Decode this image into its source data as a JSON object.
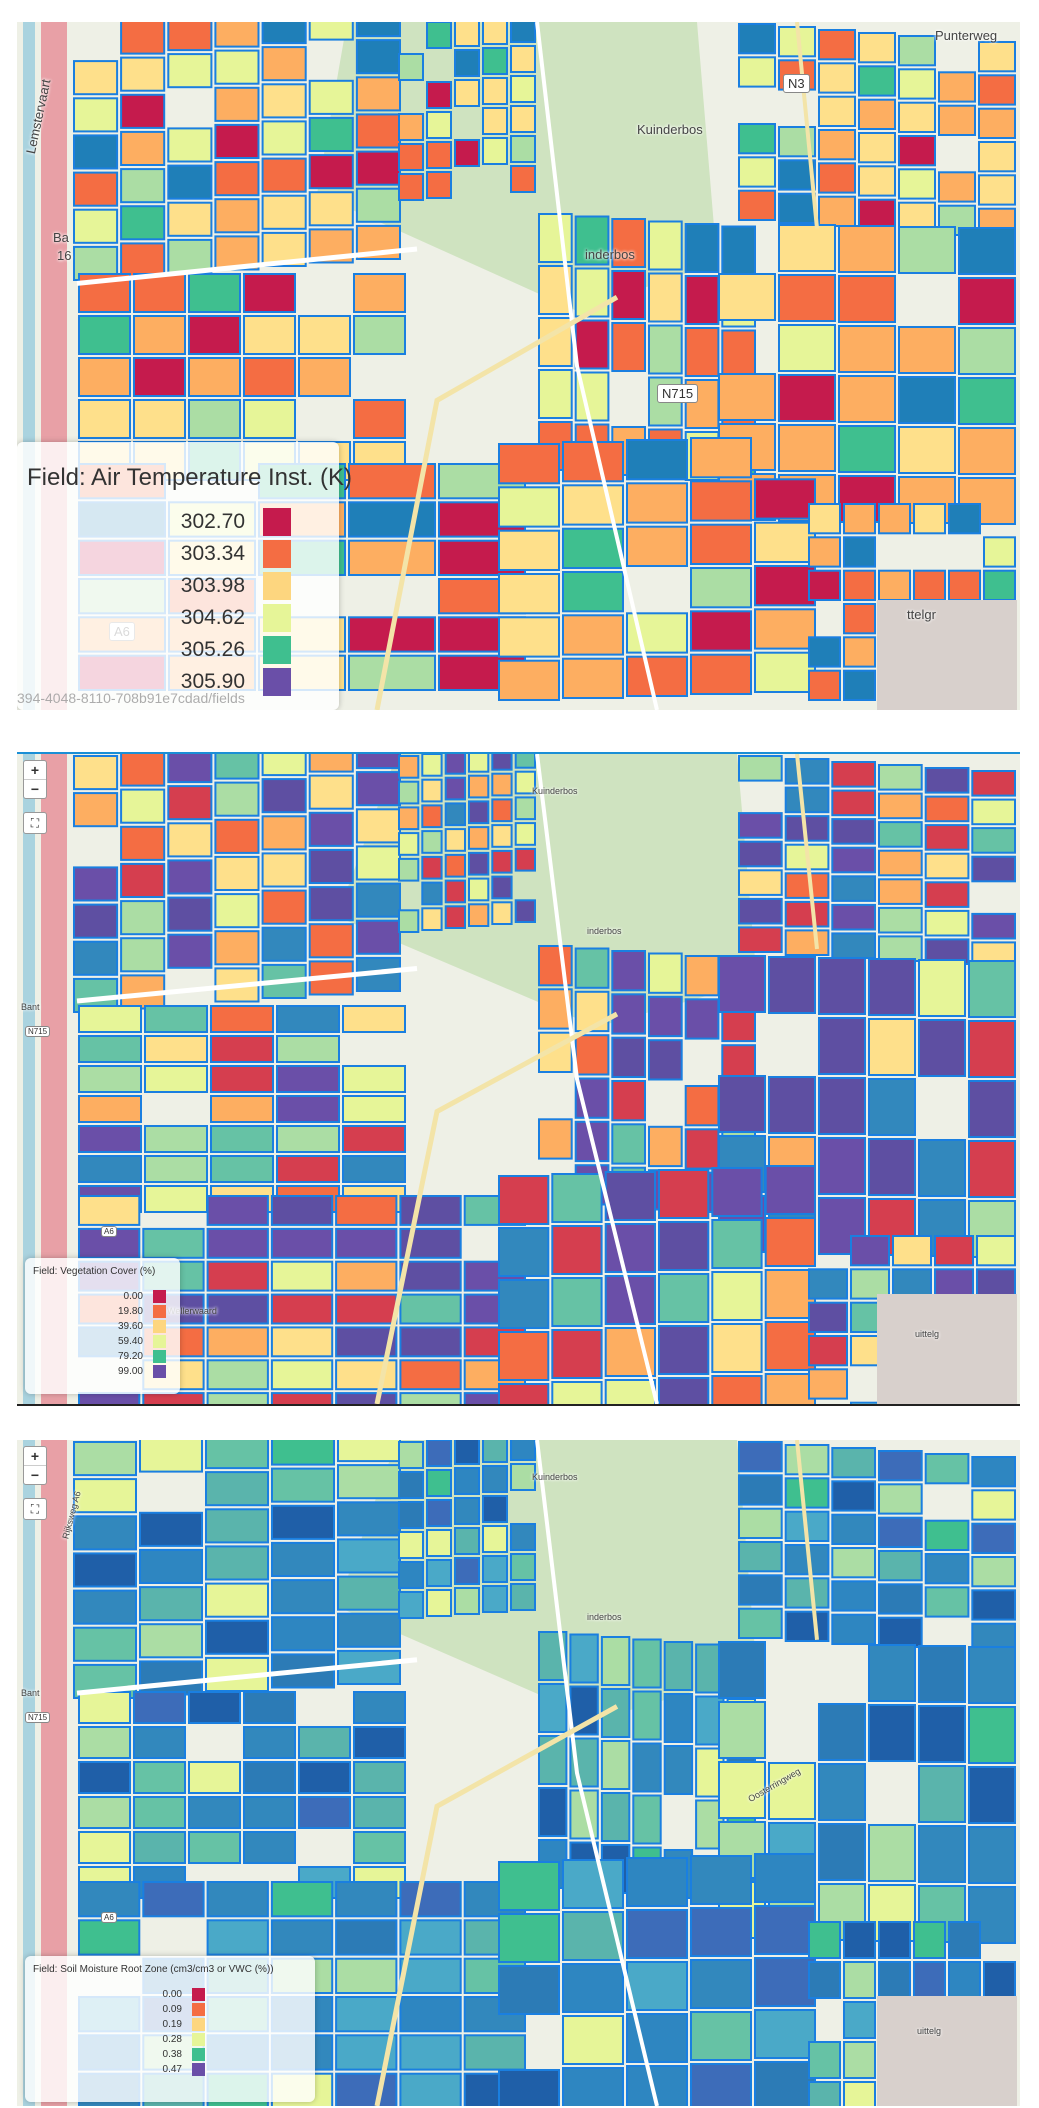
{
  "panels": [
    {
      "legend_title": "Field: Air Temperature Inst. (K)",
      "legend_values": [
        "302.70",
        "303.34",
        "303.98",
        "304.62",
        "305.26",
        "305.90"
      ],
      "path_text": "394-4048-8110-708b91e7cdad/fields"
    },
    {
      "legend_title": "Field: Vegetation Cover (%)",
      "legend_values": [
        "0.00",
        "19.80",
        "39.60",
        "59.40",
        "79.20",
        "99.00"
      ]
    },
    {
      "legend_title": "Field: Soil Moisture Root Zone (cm3/cm3 or VWC (%))",
      "legend_values": [
        "0.00",
        "0.09",
        "0.19",
        "0.28",
        "0.38",
        "0.47"
      ]
    }
  ],
  "legend_colors": [
    "#c51b4d",
    "#f46d43",
    "#fdd67f",
    "#e6f598",
    "#3fbf8f",
    "#6a4fa8"
  ],
  "controls": {
    "zoom_in": "+",
    "zoom_out": "−",
    "fullscreen_icon": "⛶"
  },
  "map_labels": {
    "kuinderbos": "Kuinderbos",
    "kuinderbos_partial": "inderbos",
    "n715": "N715",
    "n3": "N3",
    "punterweg": "Punterweg",
    "ittelgr": "ttelgr",
    "uittelg": "uittelg",
    "a6": "A6",
    "lemstervaart": "Lemstervaart",
    "baril_top": "Ba",
    "baril_num": "16",
    "baril": "Bant",
    "bant_small": "Bant",
    "rijksweg": "Rijksweg A6",
    "oosterringweg": "Oosterringweg",
    "wellerwaard": "Wellerwaard"
  },
  "map_palettes": {
    "temperature": [
      "#c51b4d",
      "#f46d43",
      "#fdae61",
      "#fee08b",
      "#e6f598",
      "#abdda4",
      "#3fbf8f",
      "#1f7fb8",
      "#f46d43",
      "#fdae61",
      "#fee08b",
      "#fdae61"
    ],
    "vegetation": [
      "#6a4fa8",
      "#5e4fa2",
      "#3288bd",
      "#66c2a5",
      "#abdda4",
      "#e6f598",
      "#fee08b",
      "#fdae61",
      "#f46d43",
      "#d53e4f",
      "#6a4fa8",
      "#5e4fa2"
    ],
    "soil": [
      "#3288bd",
      "#2c7bb6",
      "#1f5fa8",
      "#3fbf8f",
      "#66c2a5",
      "#abdda4",
      "#4aa9c8",
      "#2e86c1",
      "#e6f598",
      "#3288bd",
      "#5ab4ac",
      "#3d6cb9"
    ]
  }
}
